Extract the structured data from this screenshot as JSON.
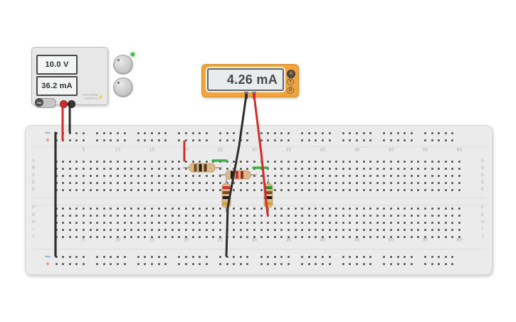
{
  "power_supply": {
    "voltage": "10.0 V",
    "current": "36.2 mA",
    "switch_label": "ON",
    "device_label_line1": "VOLTAGE",
    "device_label_line2": "SUPPLY",
    "bolt_icon": "⚡",
    "power_led_color": "#45b649",
    "terminals": [
      {
        "name": "positive",
        "color": "#cc2a2a"
      },
      {
        "name": "negative",
        "color": "#333333"
      }
    ]
  },
  "multimeter": {
    "reading": "4.26 mA",
    "body_color": "#f0a43b",
    "modes": [
      {
        "label": "A",
        "selected": true
      },
      {
        "label": "V",
        "selected": false
      },
      {
        "label": "Ω",
        "selected": false
      }
    ]
  },
  "breadboard": {
    "rail_negative_label": "−",
    "rail_positive_label": "+",
    "column_numbers": [
      "5",
      "10",
      "15",
      "20",
      "25",
      "30",
      "35",
      "40",
      "45",
      "50",
      "55",
      "60"
    ],
    "row_labels_upper": [
      "A",
      "B",
      "C",
      "D",
      "E"
    ],
    "row_labels_lower": [
      "F",
      "G",
      "H",
      "I",
      "J"
    ]
  },
  "components": {
    "resistors": [
      {
        "id": "resistor-1",
        "bands": [
          "#7a4a21",
          "#1c1c1c",
          "#5d3a18"
        ]
      },
      {
        "id": "resistor-2",
        "bands": [
          "#1c1c1c",
          "#cf2f2f",
          "#a02a1a"
        ]
      },
      {
        "id": "resistor-3",
        "bands": [
          "#cf2f2f",
          "#7a4a21",
          "#1c1c1c",
          "#c9a227"
        ]
      },
      {
        "id": "resistor-4",
        "bands": [
          "#2e8b3a",
          "#7a4a21",
          "#1c1c1c",
          "#c9a227"
        ]
      }
    ],
    "wires": [
      {
        "id": "wire-supply-red",
        "color": "#d42a2a"
      },
      {
        "id": "wire-supply-black",
        "color": "#2e2e2e"
      },
      {
        "id": "wire-rail-black",
        "color": "#2e2e2e"
      },
      {
        "id": "wire-col20-red",
        "color": "#d42a2a"
      },
      {
        "id": "wire-green-1",
        "color": "#3fae49"
      },
      {
        "id": "wire-green-2",
        "color": "#3fae49"
      },
      {
        "id": "wire-meter-black",
        "color": "#2e2e2e"
      },
      {
        "id": "wire-meter-red",
        "color": "#d42a2a"
      }
    ]
  }
}
